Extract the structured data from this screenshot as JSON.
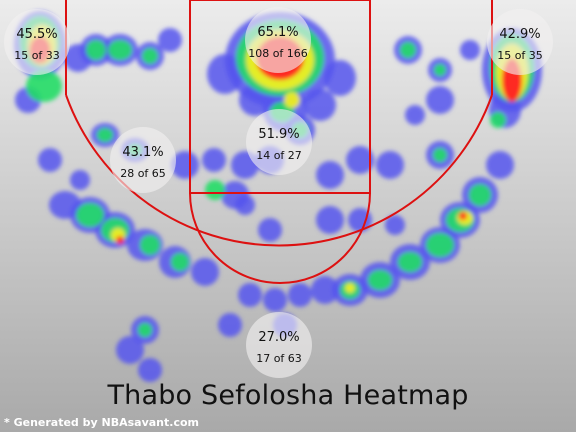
{
  "chart_data": {
    "type": "heatmap",
    "title": "Thabo Sefolosha Heatmap",
    "credit": "* Generated by NBAsavant.com",
    "zones": [
      {
        "id": "left-corner-three",
        "pct": "45.5%",
        "made_of": "15 of 33",
        "made": 15,
        "attempts": 33
      },
      {
        "id": "restricted-area",
        "pct": "65.1%",
        "made_of": "108 of 166",
        "made": 108,
        "attempts": 166
      },
      {
        "id": "right-corner-three",
        "pct": "42.9%",
        "made_of": "15 of 35",
        "made": 15,
        "attempts": 35
      },
      {
        "id": "left-midrange",
        "pct": "43.1%",
        "made_of": "28 of 65",
        "made": 28,
        "attempts": 65
      },
      {
        "id": "paint-non-ra",
        "pct": "51.9%",
        "made_of": "14 of 27",
        "made": 14,
        "attempts": 27
      },
      {
        "id": "above-break-three",
        "pct": "27.0%",
        "made_of": "17 of 63",
        "made": 17,
        "attempts": 63
      }
    ],
    "colors": {
      "background_top": "#ececec",
      "background_bottom": "#a9a9a9",
      "court_lines": "#dd1111",
      "heat_low": "#5555ee",
      "heat_mid": "#22dd66",
      "heat_warm": "#eeee22",
      "heat_high": "#ff2222"
    },
    "grid": false
  }
}
